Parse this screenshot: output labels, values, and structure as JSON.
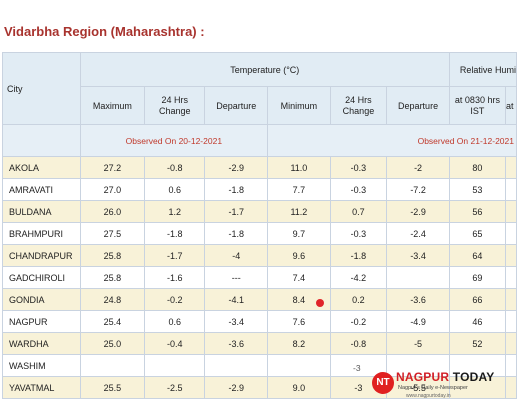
{
  "region_title": "Vidarbha Region (Maharashtra) :",
  "headers": {
    "city": "City",
    "temperature": "Temperature (°C)",
    "humidity": "Relative Humi",
    "maximum": "Maximum",
    "change_24h_max": "24 Hrs Change",
    "departure_max": "Departure",
    "minimum": "Minimum",
    "change_24h_min": "24 Hrs Change",
    "departure_min": "Departure",
    "hum_0830": "at 0830 hrs IST",
    "hum_next": "at"
  },
  "observed": {
    "max": "Observed On 20-12-2021",
    "min": "Observed On 21-12-2021"
  },
  "rows": [
    {
      "city": "AKOLA",
      "max": "27.2",
      "chg_max": "-0.8",
      "dep_max": "-2.9",
      "min": "11.0",
      "chg_min": "-0.3",
      "dep_min": "-2",
      "hum": "80"
    },
    {
      "city": "AMRAVATI",
      "max": "27.0",
      "chg_max": "0.6",
      "dep_max": "-1.8",
      "min": "7.7",
      "chg_min": "-0.3",
      "dep_min": "-7.2",
      "hum": "53"
    },
    {
      "city": "BULDANA",
      "max": "26.0",
      "chg_max": "1.2",
      "dep_max": "-1.7",
      "min": "11.2",
      "chg_min": "0.7",
      "dep_min": "-2.9",
      "hum": "56"
    },
    {
      "city": "BRAHMPURI",
      "max": "27.5",
      "chg_max": "-1.8",
      "dep_max": "-1.8",
      "min": "9.7",
      "chg_min": "-0.3",
      "dep_min": "-2.4",
      "hum": "65"
    },
    {
      "city": "CHANDRAPUR",
      "max": "25.8",
      "chg_max": "-1.7",
      "dep_max": "-4",
      "min": "9.6",
      "chg_min": "-1.8",
      "dep_min": "-3.4",
      "hum": "64"
    },
    {
      "city": "GADCHIROLI",
      "max": "25.8",
      "chg_max": "-1.6",
      "dep_max": "---",
      "min": "7.4",
      "chg_min": "-4.2",
      "dep_min": "",
      "hum": "69"
    },
    {
      "city": "GONDIA",
      "max": "24.8",
      "chg_max": "-0.2",
      "dep_max": "-4.1",
      "min": "8.4",
      "chg_min": "0.2",
      "dep_min": "-3.6",
      "hum": "66"
    },
    {
      "city": "NAGPUR",
      "max": "25.4",
      "chg_max": "0.6",
      "dep_max": "-3.4",
      "min": "7.6",
      "chg_min": "-0.2",
      "dep_min": "-4.9",
      "hum": "46"
    },
    {
      "city": "WARDHA",
      "max": "25.0",
      "chg_max": "-0.4",
      "dep_max": "-3.6",
      "min": "8.2",
      "chg_min": "-0.8",
      "dep_min": "-5",
      "hum": "52"
    },
    {
      "city": "WASHIM",
      "max": "",
      "chg_max": "",
      "dep_max": "",
      "min": "",
      "chg_min": "",
      "dep_min": "",
      "hum": ""
    },
    {
      "city": "YAVATMAL",
      "max": "25.5",
      "chg_max": "-2.5",
      "dep_max": "-2.9",
      "min": "9.0",
      "chg_min": "-3",
      "dep_min": "-5.5",
      "hum": ""
    }
  ],
  "watermark": {
    "logo": "NT",
    "brand_a": "NAGPUR ",
    "brand_b": "TODAY",
    "tagline": "Nagpur's   Daily   e-Newspaper",
    "url": "www.nagpurtoday.in"
  },
  "colors": {
    "title": "#a8332e",
    "header_bg": "#e1ecf4",
    "row_alt": "#f8f2d8",
    "observed_text": "#c0392b",
    "brand_red": "#d21f26"
  }
}
